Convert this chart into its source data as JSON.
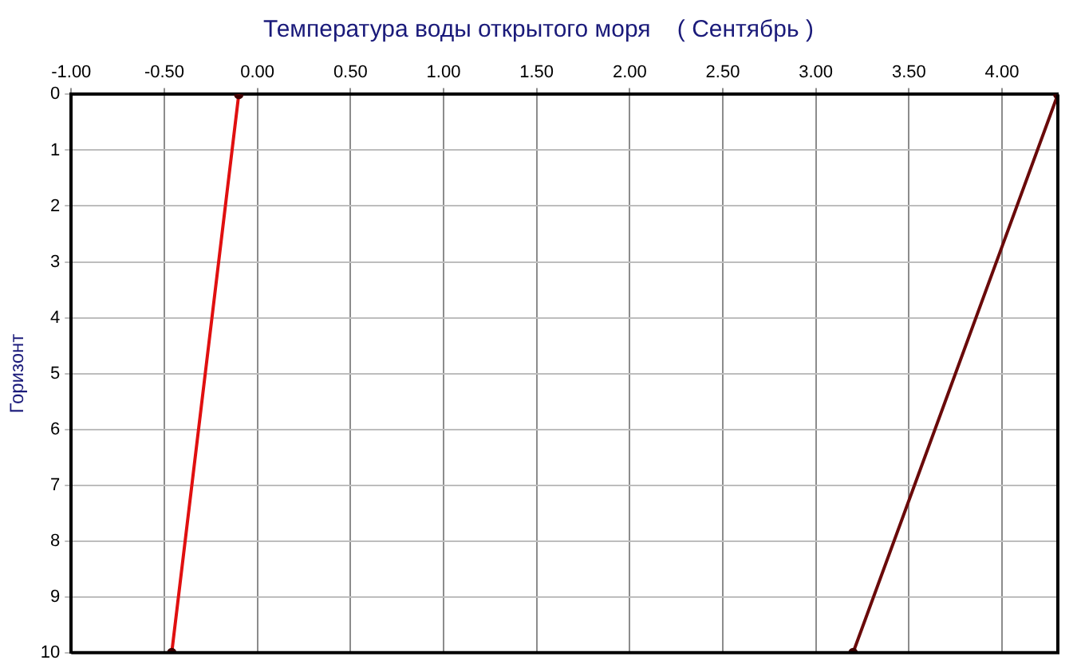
{
  "chart_data": {
    "type": "line",
    "title": "Температура воды открытого моря    ( Сентябрь )",
    "ylabel": "Горизонт",
    "series": [
      {
        "color": "#e01010",
        "x": [
          -0.1,
          -0.46
        ],
        "values": [
          0,
          10
        ]
      },
      {
        "color": "#6a0a0a",
        "x": [
          4.3,
          3.2
        ],
        "values": [
          0,
          10
        ]
      }
    ],
    "xlim": [
      -1,
      4.3
    ],
    "xticks": [
      {
        "value": -1,
        "label": "-1.00"
      },
      {
        "value": -0.5,
        "label": "-0.50"
      },
      {
        "value": 0,
        "label": "0.00"
      },
      {
        "value": 0.5,
        "label": "0.50"
      },
      {
        "value": 1,
        "label": "1.00"
      },
      {
        "value": 1.5,
        "label": "1.50"
      },
      {
        "value": 2,
        "label": "2.00"
      },
      {
        "value": 2.5,
        "label": "2.50"
      },
      {
        "value": 3,
        "label": "3.00"
      },
      {
        "value": 3.5,
        "label": "3.50"
      },
      {
        "value": 4,
        "label": "4.00"
      }
    ],
    "ylim": [
      10,
      0
    ],
    "yticks": [
      0,
      1,
      2,
      3,
      4,
      5,
      6,
      7,
      8,
      9,
      10
    ],
    "grid": true,
    "legend": false,
    "marker": "circle",
    "line_style": "solid"
  }
}
